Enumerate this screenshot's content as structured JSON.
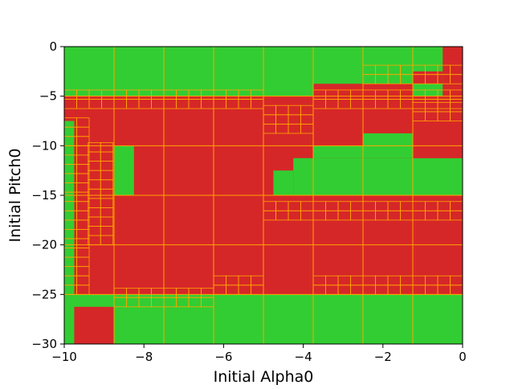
{
  "chart_data": {
    "type": "heatmap",
    "title": "",
    "xlabel": "Initial Alpha0",
    "ylabel": "Initial Pitch0",
    "xlim": [
      -10,
      0
    ],
    "ylim": [
      -30,
      0
    ],
    "x_ticks": [
      -10,
      -8,
      -6,
      -4,
      -2,
      0
    ],
    "x_tick_labels": [
      "−10",
      "−8",
      "−6",
      "−4",
      "−2",
      "0"
    ],
    "y_ticks": [
      0,
      -5,
      -10,
      -15,
      -20,
      -25,
      -30
    ],
    "y_tick_labels": [
      "0",
      "−5",
      "−10",
      "−15",
      "−20",
      "−25",
      "−30"
    ],
    "grid": false,
    "legend": "none",
    "cell_edge_color": "#FFA500",
    "series": [
      {
        "color": "#32CD32"
      },
      {
        "color": "#D62728"
      }
    ],
    "regions": [
      {
        "series": 0,
        "x": [
          -10,
          0
        ],
        "y": [
          -30,
          0
        ]
      },
      {
        "series": 1,
        "x": [
          -10,
          0
        ],
        "y": [
          -25,
          -5
        ]
      },
      {
        "series": 0,
        "x": [
          -10,
          -8.75
        ],
        "y": [
          -30,
          -25
        ]
      },
      {
        "series": 0,
        "x": [
          -8.75,
          -7.5
        ],
        "y": [
          -30,
          -26.25
        ]
      },
      {
        "series": 1,
        "x": [
          -10,
          -8.75
        ],
        "y": [
          -30,
          -26.25
        ]
      },
      {
        "series": 1,
        "x": [
          -0.5,
          0
        ],
        "y": [
          -5,
          0
        ]
      },
      {
        "series": 1,
        "x": [
          -1.25,
          -0.5
        ],
        "y": [
          -3.75,
          -2.5
        ]
      },
      {
        "series": 1,
        "x": [
          -2.5,
          -1.25
        ],
        "y": [
          -6.25,
          -3.75
        ]
      },
      {
        "series": 1,
        "x": [
          -3.75,
          -2.5
        ],
        "y": [
          -5,
          -3.75
        ]
      },
      {
        "series": 0,
        "x": [
          -3.75,
          0
        ],
        "y": [
          -15,
          -11.25
        ]
      },
      {
        "series": 0,
        "x": [
          -2.5,
          -1.25
        ],
        "y": [
          -11.25,
          -8.75
        ]
      },
      {
        "series": 0,
        "x": [
          -3.75,
          -2.5
        ],
        "y": [
          -11.25,
          -10
        ]
      },
      {
        "series": 1,
        "x": [
          -1.25,
          -0.75
        ],
        "y": [
          -11.25,
          -8.75
        ]
      },
      {
        "series": 1,
        "x": [
          -0.75,
          0
        ],
        "y": [
          -11.25,
          -7.5
        ]
      },
      {
        "series": 0,
        "x": [
          -10,
          -9.75
        ],
        "y": [
          -30,
          -7.5
        ]
      },
      {
        "series": 1,
        "x": [
          -9.75,
          -9.1
        ],
        "y": [
          -15,
          -8.75
        ]
      },
      {
        "series": 0,
        "x": [
          -8.75,
          -8.25
        ],
        "y": [
          -15,
          -10
        ]
      },
      {
        "series": 0,
        "x": [
          -4.75,
          -4.25
        ],
        "y": [
          -15,
          -12.5
        ]
      },
      {
        "series": 0,
        "x": [
          -4.25,
          -3.75
        ],
        "y": [
          -15,
          -11.25
        ]
      }
    ]
  }
}
